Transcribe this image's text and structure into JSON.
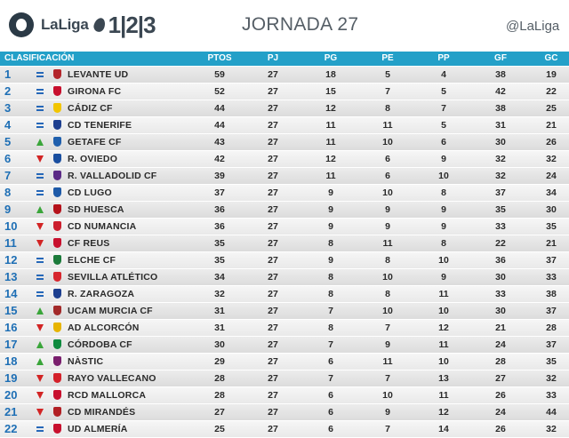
{
  "header": {
    "brand": "LaLiga",
    "brand_num": "1|2|3",
    "title": "JORNADA 27",
    "handle": "@LaLiga"
  },
  "table": {
    "columns": [
      "CLASIFICACIÓN",
      "PTOS",
      "PJ",
      "PG",
      "PE",
      "PP",
      "GF",
      "GC"
    ],
    "rows": [
      {
        "pos": "1",
        "trend": "same",
        "crest": "#b3252b",
        "team": "LEVANTE UD",
        "pts": "59",
        "pj": "27",
        "pg": "18",
        "pe": "5",
        "pp": "4",
        "gf": "38",
        "gc": "19"
      },
      {
        "pos": "2",
        "trend": "same",
        "crest": "#c8102e",
        "team": "GIRONA FC",
        "pts": "52",
        "pj": "27",
        "pg": "15",
        "pe": "7",
        "pp": "5",
        "gf": "42",
        "gc": "22"
      },
      {
        "pos": "3",
        "trend": "same",
        "crest": "#f2c500",
        "team": "CÁDIZ CF",
        "pts": "44",
        "pj": "27",
        "pg": "12",
        "pe": "8",
        "pp": "7",
        "gf": "38",
        "gc": "25"
      },
      {
        "pos": "4",
        "trend": "same",
        "crest": "#1d3f8f",
        "team": "CD TENERIFE",
        "pts": "44",
        "pj": "27",
        "pg": "11",
        "pe": "11",
        "pp": "5",
        "gf": "31",
        "gc": "21"
      },
      {
        "pos": "5",
        "trend": "up",
        "crest": "#1f5fad",
        "team": "GETAFE CF",
        "pts": "43",
        "pj": "27",
        "pg": "11",
        "pe": "10",
        "pp": "6",
        "gf": "30",
        "gc": "26"
      },
      {
        "pos": "6",
        "trend": "down",
        "crest": "#1a4fa0",
        "team": "R. OVIEDO",
        "pts": "42",
        "pj": "27",
        "pg": "12",
        "pe": "6",
        "pp": "9",
        "gf": "32",
        "gc": "32"
      },
      {
        "pos": "7",
        "trend": "same",
        "crest": "#5b2a86",
        "team": "R. VALLADOLID CF",
        "pts": "39",
        "pj": "27",
        "pg": "11",
        "pe": "6",
        "pp": "10",
        "gf": "32",
        "gc": "24"
      },
      {
        "pos": "8",
        "trend": "same",
        "crest": "#1e5aa8",
        "team": "CD LUGO",
        "pts": "37",
        "pj": "27",
        "pg": "9",
        "pe": "10",
        "pp": "8",
        "gf": "37",
        "gc": "34"
      },
      {
        "pos": "9",
        "trend": "up",
        "crest": "#b5121b",
        "team": "SD HUESCA",
        "pts": "36",
        "pj": "27",
        "pg": "9",
        "pe": "9",
        "pp": "9",
        "gf": "35",
        "gc": "30"
      },
      {
        "pos": "10",
        "trend": "down",
        "crest": "#cc1f2e",
        "team": "CD NUMANCIA",
        "pts": "36",
        "pj": "27",
        "pg": "9",
        "pe": "9",
        "pp": "9",
        "gf": "33",
        "gc": "35"
      },
      {
        "pos": "11",
        "trend": "down",
        "crest": "#c8102e",
        "team": "CF REUS",
        "pts": "35",
        "pj": "27",
        "pg": "8",
        "pe": "11",
        "pp": "8",
        "gf": "22",
        "gc": "21"
      },
      {
        "pos": "12",
        "trend": "same",
        "crest": "#1b7a3a",
        "team": "ELCHE CF",
        "pts": "35",
        "pj": "27",
        "pg": "9",
        "pe": "8",
        "pp": "10",
        "gf": "36",
        "gc": "37"
      },
      {
        "pos": "13",
        "trend": "same",
        "crest": "#d7262e",
        "team": "SEVILLA ATLÉTICO",
        "pts": "34",
        "pj": "27",
        "pg": "8",
        "pe": "10",
        "pp": "9",
        "gf": "30",
        "gc": "33"
      },
      {
        "pos": "14",
        "trend": "same",
        "crest": "#1d3f8f",
        "team": "R. ZARAGOZA",
        "pts": "32",
        "pj": "27",
        "pg": "8",
        "pe": "8",
        "pp": "11",
        "gf": "33",
        "gc": "38"
      },
      {
        "pos": "15",
        "trend": "up",
        "crest": "#a32a2a",
        "team": "UCAM MURCIA CF",
        "pts": "31",
        "pj": "27",
        "pg": "7",
        "pe": "10",
        "pp": "10",
        "gf": "30",
        "gc": "37"
      },
      {
        "pos": "16",
        "trend": "down",
        "crest": "#e7b400",
        "team": "AD ALCORCÓN",
        "pts": "31",
        "pj": "27",
        "pg": "8",
        "pe": "7",
        "pp": "12",
        "gf": "21",
        "gc": "28"
      },
      {
        "pos": "17",
        "trend": "up",
        "crest": "#0e8a3e",
        "team": "CÓRDOBA CF",
        "pts": "30",
        "pj": "27",
        "pg": "7",
        "pe": "9",
        "pp": "11",
        "gf": "24",
        "gc": "37"
      },
      {
        "pos": "18",
        "trend": "up",
        "crest": "#7a1f6e",
        "team": "NÀSTIC",
        "pts": "29",
        "pj": "27",
        "pg": "6",
        "pe": "11",
        "pp": "10",
        "gf": "28",
        "gc": "35"
      },
      {
        "pos": "19",
        "trend": "down",
        "crest": "#d4212a",
        "team": "RAYO VALLECANO",
        "pts": "28",
        "pj": "27",
        "pg": "7",
        "pe": "7",
        "pp": "13",
        "gf": "27",
        "gc": "32"
      },
      {
        "pos": "20",
        "trend": "down",
        "crest": "#c8102e",
        "team": "RCD MALLORCA",
        "pts": "28",
        "pj": "27",
        "pg": "6",
        "pe": "10",
        "pp": "11",
        "gf": "26",
        "gc": "33"
      },
      {
        "pos": "21",
        "trend": "down",
        "crest": "#b21f24",
        "team": "CD MIRANDÉS",
        "pts": "27",
        "pj": "27",
        "pg": "6",
        "pe": "9",
        "pp": "12",
        "gf": "24",
        "gc": "44"
      },
      {
        "pos": "22",
        "trend": "same",
        "crest": "#c8102e",
        "team": "UD ALMERÍA",
        "pts": "25",
        "pj": "27",
        "pg": "6",
        "pe": "7",
        "pp": "14",
        "gf": "26",
        "gc": "32"
      }
    ]
  }
}
